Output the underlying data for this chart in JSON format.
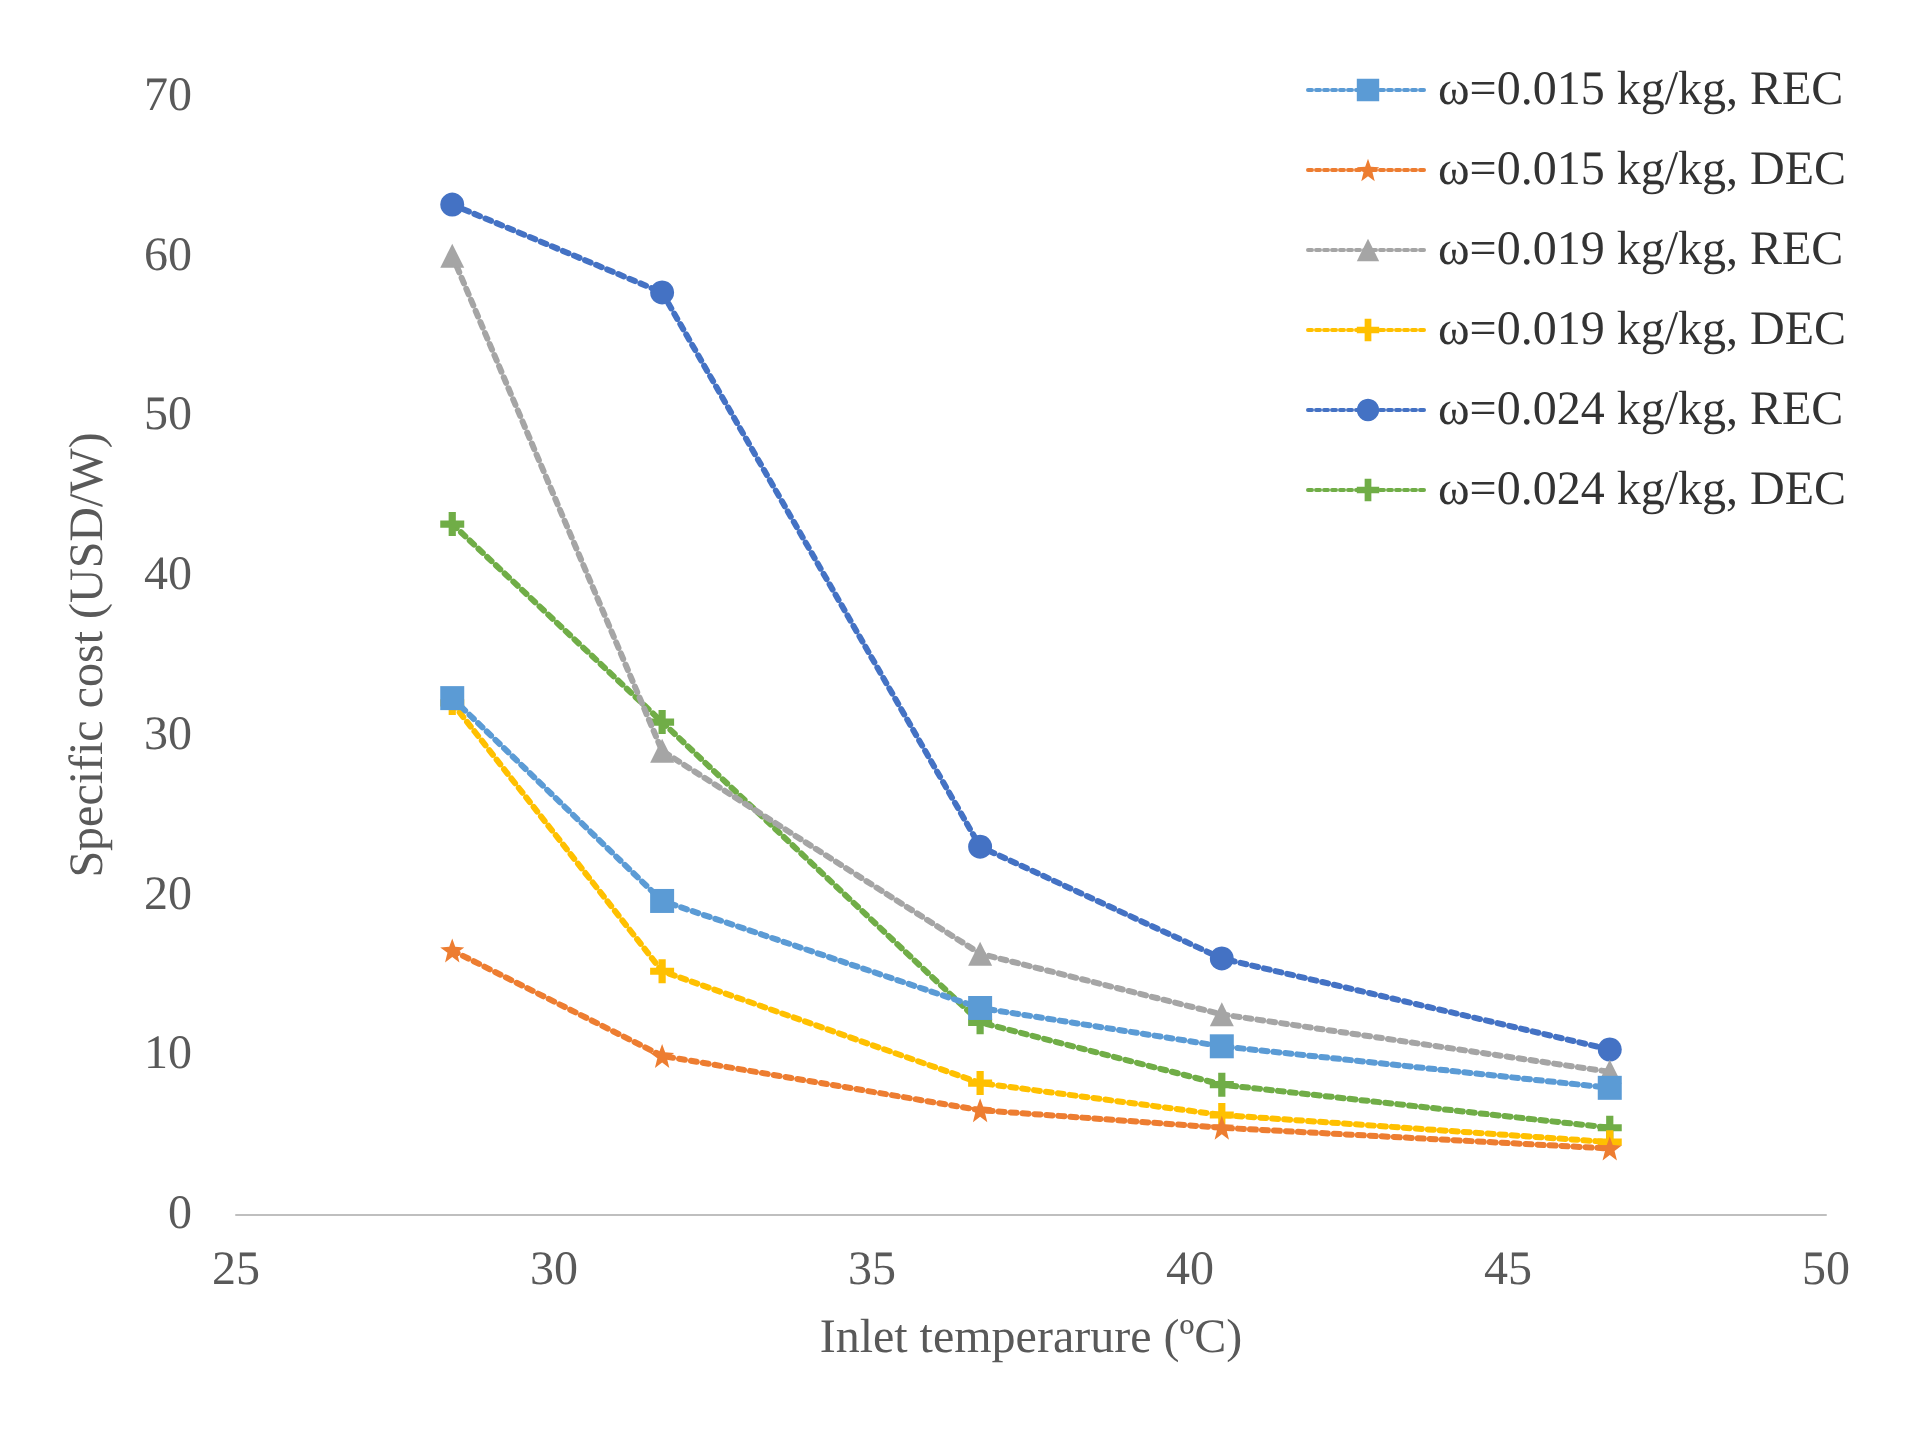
{
  "chart_data": {
    "type": "line",
    "xlabel": "Inlet temperarure (ºC)",
    "ylabel": "Specific cost (USD/W)",
    "x": [
      28.4,
      31.7,
      36.7,
      40.5,
      46.6
    ],
    "xlim": [
      25,
      50
    ],
    "xticks": [
      25,
      30,
      35,
      40,
      45,
      50
    ],
    "ylim": [
      0,
      70
    ],
    "yticks": [
      0,
      10,
      20,
      30,
      40,
      50,
      60,
      70
    ],
    "grid": false,
    "legend": "top right",
    "line_style": "dotted",
    "series": [
      {
        "name": "ω=0.015 kg/kg, REC",
        "color": "#5b9bd5",
        "marker": "square",
        "values": [
          32.3,
          19.6,
          12.9,
          10.5,
          7.9
        ]
      },
      {
        "name": "ω=0.015 kg/kg, DEC",
        "color": "#ed7d31",
        "marker": "star",
        "values": [
          16.5,
          9.9,
          6.5,
          5.4,
          4.1
        ]
      },
      {
        "name": "ω=0.019 kg/kg, REC",
        "color": "#a5a5a5",
        "marker": "triangle",
        "values": [
          60,
          29,
          16.3,
          12.5,
          8.9
        ]
      },
      {
        "name": "ω=0.019 kg/kg, DEC",
        "color": "#ffc000",
        "marker": "cross",
        "values": [
          32,
          15.2,
          8.2,
          6.2,
          4.5
        ]
      },
      {
        "name": "ω=0.024 kg/kg, REC",
        "color": "#4472c4",
        "marker": "circle",
        "values": [
          63.2,
          57.7,
          23,
          16,
          10.3
        ]
      },
      {
        "name": "ω=0.024 kg/kg, DEC",
        "color": "#70ad47",
        "marker": "cross",
        "values": [
          43.2,
          30.8,
          12,
          8.1,
          5.4
        ]
      }
    ]
  }
}
